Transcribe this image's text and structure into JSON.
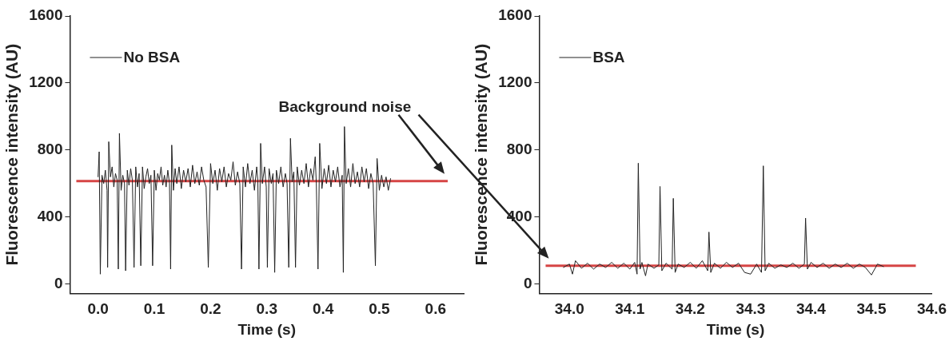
{
  "chart_data": [
    {
      "type": "line",
      "xlabel": "Time (s)",
      "ylabel": "Fluorescence intensity (AU)",
      "xlim": [
        -0.05,
        0.65
      ],
      "ylim": [
        -55,
        1600
      ],
      "xticks": [
        {
          "value": 0,
          "label": "0.0"
        },
        0.1,
        0.2,
        0.3,
        0.4,
        0.5,
        0.6
      ],
      "yticks": [
        0,
        400,
        800,
        1200,
        1600
      ],
      "grid": false,
      "legend": "top left",
      "marker": "none",
      "line_style": "solid",
      "annotations": [
        "Background noise"
      ],
      "ref_lines": [
        {
          "axis": "y",
          "value": 615,
          "label": null,
          "color": "#d64545"
        }
      ],
      "series": [
        {
          "name": "No BSA",
          "color": "#222222",
          "x": [
            0.0,
            0.002,
            0.004,
            0.007,
            0.01,
            0.013,
            0.016,
            0.017,
            0.019,
            0.022,
            0.025,
            0.028,
            0.031,
            0.034,
            0.036,
            0.038,
            0.041,
            0.044,
            0.047,
            0.049,
            0.052,
            0.055,
            0.058,
            0.061,
            0.064,
            0.067,
            0.07,
            0.073,
            0.076,
            0.079,
            0.082,
            0.085,
            0.088,
            0.091,
            0.094,
            0.097,
            0.1,
            0.103,
            0.106,
            0.109,
            0.112,
            0.115,
            0.118,
            0.121,
            0.124,
            0.127,
            0.129,
            0.131,
            0.134,
            0.137,
            0.14,
            0.144,
            0.148,
            0.152,
            0.156,
            0.16,
            0.164,
            0.168,
            0.172,
            0.176,
            0.18,
            0.184,
            0.188,
            0.192,
            0.196,
            0.2,
            0.204,
            0.208,
            0.212,
            0.216,
            0.22,
            0.224,
            0.228,
            0.232,
            0.236,
            0.24,
            0.244,
            0.248,
            0.252,
            0.255,
            0.258,
            0.262,
            0.266,
            0.27,
            0.274,
            0.278,
            0.282,
            0.284,
            0.286,
            0.289,
            0.292,
            0.296,
            0.299,
            0.301,
            0.304,
            0.308,
            0.311,
            0.314,
            0.317,
            0.321,
            0.325,
            0.329,
            0.333,
            0.336,
            0.339,
            0.342,
            0.345,
            0.348,
            0.351,
            0.354,
            0.358,
            0.362,
            0.366,
            0.37,
            0.374,
            0.378,
            0.382,
            0.386,
            0.388,
            0.391,
            0.394,
            0.398,
            0.402,
            0.406,
            0.41,
            0.414,
            0.418,
            0.422,
            0.426,
            0.43,
            0.434,
            0.436,
            0.438,
            0.441,
            0.445,
            0.449,
            0.453,
            0.457,
            0.461,
            0.465,
            0.469,
            0.473,
            0.477,
            0.481,
            0.485,
            0.489,
            0.493,
            0.496,
            0.5,
            0.504,
            0.508,
            0.512,
            0.516,
            0.52
          ],
          "values": [
            640,
            790,
            60,
            650,
            600,
            680,
            560,
            100,
            850,
            640,
            700,
            580,
            660,
            620,
            90,
            900,
            560,
            650,
            600,
            80,
            680,
            590,
            690,
            620,
            100,
            700,
            580,
            660,
            110,
            700,
            570,
            640,
            690,
            600,
            650,
            110,
            680,
            560,
            660,
            620,
            700,
            590,
            650,
            580,
            680,
            600,
            90,
            830,
            560,
            690,
            600,
            700,
            570,
            680,
            610,
            690,
            580,
            710,
            600,
            670,
            590,
            700,
            620,
            580,
            100,
            720,
            600,
            680,
            560,
            690,
            610,
            700,
            580,
            660,
            620,
            730,
            590,
            670,
            600,
            90,
            700,
            580,
            720,
            600,
            680,
            560,
            700,
            620,
            90,
            840,
            600,
            700,
            580,
            100,
            690,
            600,
            660,
            70,
            680,
            600,
            700,
            580,
            660,
            600,
            100,
            870,
            610,
            670,
            100,
            700,
            590,
            680,
            600,
            720,
            580,
            690,
            620,
            760,
            600,
            90,
            840,
            570,
            690,
            600,
            710,
            580,
            680,
            610,
            700,
            580,
            650,
            70,
            940,
            600,
            690,
            580,
            720,
            600,
            670,
            580,
            700,
            610,
            690,
            570,
            660,
            600,
            110,
            750,
            560,
            650,
            580,
            640,
            560,
            630
          ]
        }
      ]
    },
    {
      "type": "line",
      "xlabel": "Time (s)",
      "ylabel": "Fluorescence intensity (AU)",
      "xlim": [
        33.95,
        34.6
      ],
      "ylim": [
        -55,
        1600
      ],
      "xticks": [
        {
          "value": 34,
          "label": "34.0"
        },
        34.1,
        34.2,
        34.3,
        34.4,
        34.5,
        34.6
      ],
      "yticks": [
        0,
        400,
        800,
        1200,
        1600
      ],
      "grid": false,
      "legend": "top left",
      "marker": "none",
      "line_style": "solid",
      "ref_lines": [
        {
          "axis": "y",
          "value": 110,
          "label": null,
          "color": "#d64545"
        }
      ],
      "series": [
        {
          "name": "BSA",
          "color": "#222222",
          "x": [
            33.99,
            34.0,
            34.005,
            34.01,
            34.02,
            34.03,
            34.04,
            34.05,
            34.06,
            34.07,
            34.08,
            34.09,
            34.1,
            34.108,
            34.112,
            34.114,
            34.117,
            34.12,
            34.126,
            34.13,
            34.14,
            34.148,
            34.15,
            34.153,
            34.16,
            34.17,
            34.172,
            34.175,
            34.18,
            34.19,
            34.2,
            34.21,
            34.22,
            34.229,
            34.231,
            34.234,
            34.24,
            34.25,
            34.26,
            34.27,
            34.28,
            34.29,
            34.3,
            34.31,
            34.318,
            34.321,
            34.324,
            34.33,
            34.34,
            34.35,
            34.36,
            34.37,
            34.38,
            34.389,
            34.391,
            34.394,
            34.4,
            34.41,
            34.42,
            34.43,
            34.44,
            34.45,
            34.46,
            34.47,
            34.48,
            34.49,
            34.5,
            34.51,
            34.52
          ],
          "values": [
            100,
            120,
            60,
            140,
            95,
            125,
            90,
            120,
            100,
            130,
            95,
            125,
            90,
            130,
            60,
            722,
            90,
            130,
            50,
            120,
            95,
            115,
            583,
            80,
            125,
            90,
            512,
            70,
            120,
            100,
            130,
            95,
            140,
            80,
            311,
            70,
            125,
            95,
            130,
            100,
            125,
            70,
            60,
            120,
            70,
            706,
            80,
            125,
            95,
            115,
            100,
            125,
            95,
            120,
            394,
            90,
            130,
            100,
            125,
            95,
            120,
            100,
            125,
            95,
            120,
            100,
            55,
            120,
            105
          ]
        }
      ]
    }
  ]
}
